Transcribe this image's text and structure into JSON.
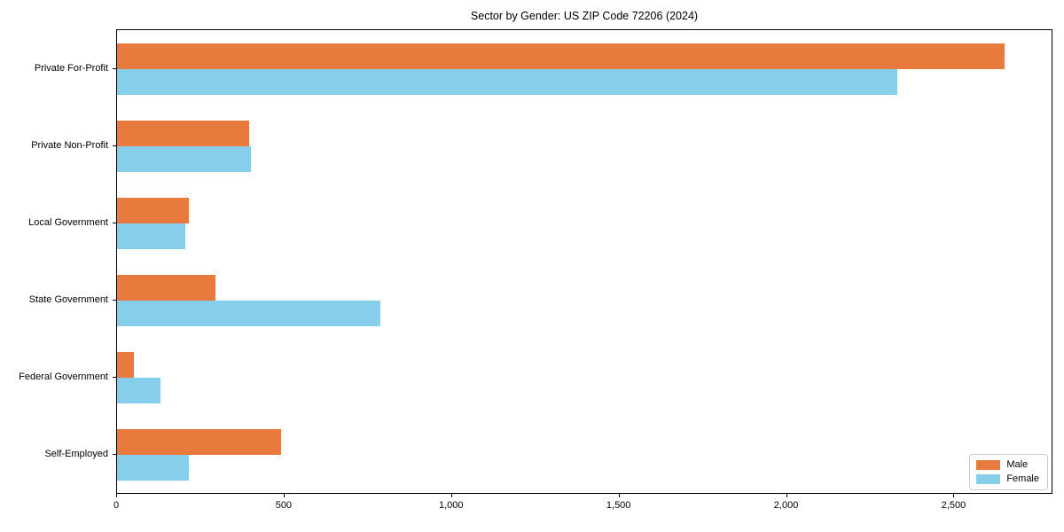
{
  "title": "Sector by Gender: US ZIP Code 72206 (2024)",
  "chart_data": {
    "type": "bar",
    "orientation": "horizontal",
    "title": "Sector by Gender: US ZIP Code 72206 (2024)",
    "categories": [
      "Private For-Profit",
      "Private Non-Profit",
      "Local Government",
      "State Government",
      "Federal Government",
      "Self-Employed"
    ],
    "series": [
      {
        "name": "Male",
        "color": "#e87a3e",
        "values": [
          2650,
          395,
          215,
          295,
          50,
          490
        ]
      },
      {
        "name": "Female",
        "color": "#87ceeb",
        "values": [
          2330,
          400,
          205,
          785,
          130,
          215
        ]
      }
    ],
    "xlabel": "",
    "ylabel": "",
    "xlim": [
      0,
      2790
    ],
    "xticks": [
      0,
      500,
      1000,
      1500,
      2000,
      2500
    ],
    "xtick_labels": [
      "0",
      "500",
      "1,000",
      "1,500",
      "2,000",
      "2,500"
    ],
    "legend_position": "lower right",
    "grid": false,
    "background": "#ffffff",
    "spine_color": "#000000"
  }
}
